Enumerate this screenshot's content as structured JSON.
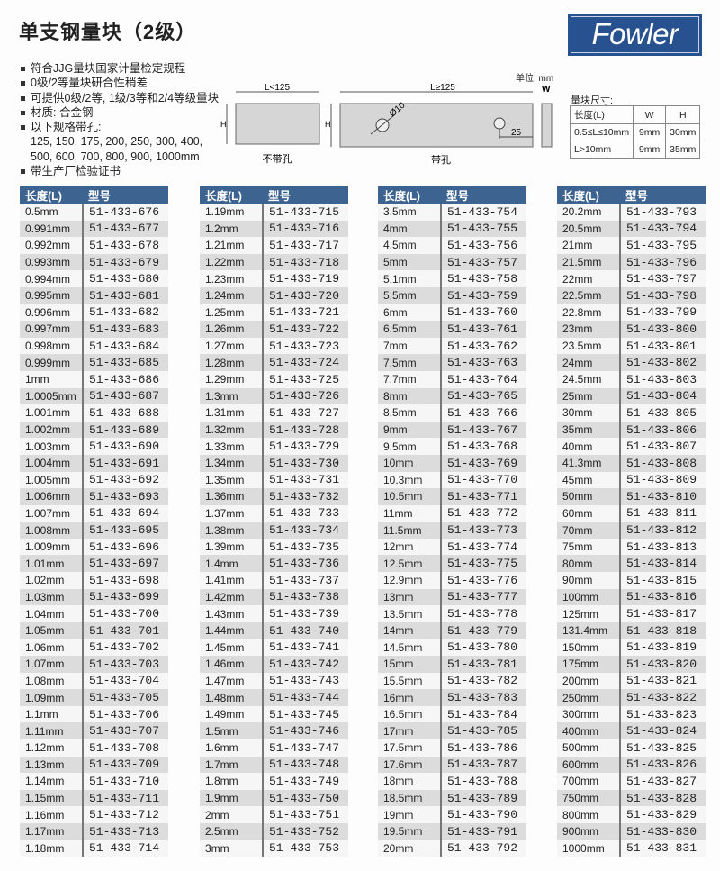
{
  "title": "单支钢量块（2级）",
  "logo": "Fowler",
  "bullets": [
    "符合JJG量块国家计量检定规程",
    "0级/2等量块研合性稍差",
    "可提供0级/2等, 1级/3等和2/4等级量块",
    "材质: 合金钢",
    "以下规格带孔:",
    "125, 150, 175, 200, 250, 300, 400,",
    "500, 600, 700, 800, 900, 1000mm",
    "带生产厂检验证书"
  ],
  "diagram": {
    "unit": "单位: mm",
    "left_len": "L<125",
    "right_len": "L≥125",
    "h": "H",
    "w": "W",
    "hole": "Ø10",
    "offset": "25",
    "left_caption": "不带孔",
    "right_caption": "带孔"
  },
  "sizes": {
    "title": "量块尺寸:",
    "header": [
      "长度(L)",
      "W",
      "H"
    ],
    "rows": [
      [
        "0.5≤L≤10mm",
        "9mm",
        "30mm"
      ],
      [
        "L>10mm",
        "9mm",
        "35mm"
      ]
    ]
  },
  "table_header": [
    "长度(L)",
    "型号"
  ],
  "tables": [
    [
      "0.5mm",
      "0.991mm",
      "0.992mm",
      "0.993mm",
      "0.994mm",
      "0.995mm",
      "0.996mm",
      "0.997mm",
      "0.998mm",
      "0.999mm",
      "1mm",
      "1.0005mm",
      "1.001mm",
      "1.002mm",
      "1.003mm",
      "1.004mm",
      "1.005mm",
      "1.006mm",
      "1.007mm",
      "1.008mm",
      "1.009mm",
      "1.01mm",
      "1.02mm",
      "1.03mm",
      "1.04mm",
      "1.05mm",
      "1.06mm",
      "1.07mm",
      "1.08mm",
      "1.09mm",
      "1.1mm",
      "1.11mm",
      "1.12mm",
      "1.13mm",
      "1.14mm",
      "1.15mm",
      "1.16mm",
      "1.17mm",
      "1.18mm"
    ],
    [
      "1.19mm",
      "1.2mm",
      "1.21mm",
      "1.22mm",
      "1.23mm",
      "1.24mm",
      "1.25mm",
      "1.26mm",
      "1.27mm",
      "1.28mm",
      "1.29mm",
      "1.3mm",
      "1.31mm",
      "1.32mm",
      "1.33mm",
      "1.34mm",
      "1.35mm",
      "1.36mm",
      "1.37mm",
      "1.38mm",
      "1.39mm",
      "1.4mm",
      "1.41mm",
      "1.42mm",
      "1.43mm",
      "1.44mm",
      "1.45mm",
      "1.46mm",
      "1.47mm",
      "1.48mm",
      "1.49mm",
      "1.5mm",
      "1.6mm",
      "1.7mm",
      "1.8mm",
      "1.9mm",
      "2mm",
      "2.5mm",
      "3mm"
    ],
    [
      "3.5mm",
      "4mm",
      "4.5mm",
      "5mm",
      "5.1mm",
      "5.5mm",
      "6mm",
      "6.5mm",
      "7mm",
      "7.5mm",
      "7.7mm",
      "8mm",
      "8.5mm",
      "9mm",
      "9.5mm",
      "10mm",
      "10.3mm",
      "10.5mm",
      "11mm",
      "11.5mm",
      "12mm",
      "12.5mm",
      "12.9mm",
      "13mm",
      "13.5mm",
      "14mm",
      "14.5mm",
      "15mm",
      "15.5mm",
      "16mm",
      "16.5mm",
      "17mm",
      "17.5mm",
      "17.6mm",
      "18mm",
      "18.5mm",
      "19mm",
      "19.5mm",
      "20mm"
    ],
    [
      "20.2mm",
      "20.5mm",
      "21mm",
      "21.5mm",
      "22mm",
      "22.5mm",
      "22.8mm",
      "23mm",
      "23.5mm",
      "24mm",
      "24.5mm",
      "25mm",
      "30mm",
      "35mm",
      "40mm",
      "41.3mm",
      "45mm",
      "50mm",
      "60mm",
      "70mm",
      "75mm",
      "80mm",
      "90mm",
      "100mm",
      "125mm",
      "131.4mm",
      "150mm",
      "175mm",
      "200mm",
      "250mm",
      "300mm",
      "400mm",
      "500mm",
      "600mm",
      "700mm",
      "750mm",
      "800mm",
      "900mm",
      "1000mm"
    ]
  ],
  "models": [
    [
      "51-433-676",
      "51-433-677",
      "51-433-678",
      "51-433-679",
      "51-433-680",
      "51-433-681",
      "51-433-682",
      "51-433-683",
      "51-433-684",
      "51-433-685",
      "51-433-686",
      "51-433-687",
      "51-433-688",
      "51-433-689",
      "51-433-690",
      "51-433-691",
      "51-433-692",
      "51-433-693",
      "51-433-694",
      "51-433-695",
      "51-433-696",
      "51-433-697",
      "51-433-698",
      "51-433-699",
      "51-433-700",
      "51-433-701",
      "51-433-702",
      "51-433-703",
      "51-433-704",
      "51-433-705",
      "51-433-706",
      "51-433-707",
      "51-433-708",
      "51-433-709",
      "51-433-710",
      "51-433-711",
      "51-433-712",
      "51-433-713",
      "51-433-714"
    ],
    [
      "51-433-715",
      "51-433-716",
      "51-433-717",
      "51-433-718",
      "51-433-719",
      "51-433-720",
      "51-433-721",
      "51-433-722",
      "51-433-723",
      "51-433-724",
      "51-433-725",
      "51-433-726",
      "51-433-727",
      "51-433-728",
      "51-433-729",
      "51-433-730",
      "51-433-731",
      "51-433-732",
      "51-433-733",
      "51-433-734",
      "51-433-735",
      "51-433-736",
      "51-433-737",
      "51-433-738",
      "51-433-739",
      "51-433-740",
      "51-433-741",
      "51-433-742",
      "51-433-743",
      "51-433-744",
      "51-433-745",
      "51-433-746",
      "51-433-747",
      "51-433-748",
      "51-433-749",
      "51-433-750",
      "51-433-751",
      "51-433-752",
      "51-433-753"
    ],
    [
      "51-433-754",
      "51-433-755",
      "51-433-756",
      "51-433-757",
      "51-433-758",
      "51-433-759",
      "51-433-760",
      "51-433-761",
      "51-433-762",
      "51-433-763",
      "51-433-764",
      "51-433-765",
      "51-433-766",
      "51-433-767",
      "51-433-768",
      "51-433-769",
      "51-433-770",
      "51-433-771",
      "51-433-772",
      "51-433-773",
      "51-433-774",
      "51-433-775",
      "51-433-776",
      "51-433-777",
      "51-433-778",
      "51-433-779",
      "51-433-780",
      "51-433-781",
      "51-433-782",
      "51-433-783",
      "51-433-784",
      "51-433-785",
      "51-433-786",
      "51-433-787",
      "51-433-788",
      "51-433-789",
      "51-433-790",
      "51-433-791",
      "51-433-792"
    ],
    [
      "51-433-793",
      "51-433-794",
      "51-433-795",
      "51-433-796",
      "51-433-797",
      "51-433-798",
      "51-433-799",
      "51-433-800",
      "51-433-801",
      "51-433-802",
      "51-433-803",
      "51-433-804",
      "51-433-805",
      "51-433-806",
      "51-433-807",
      "51-433-808",
      "51-433-809",
      "51-433-810",
      "51-433-811",
      "51-433-812",
      "51-433-813",
      "51-433-814",
      "51-433-815",
      "51-433-816",
      "51-433-817",
      "51-433-818",
      "51-433-819",
      "51-433-820",
      "51-433-821",
      "51-433-822",
      "51-433-823",
      "51-433-824",
      "51-433-825",
      "51-433-826",
      "51-433-827",
      "51-433-828",
      "51-433-829",
      "51-433-830",
      "51-433-831"
    ]
  ],
  "colors": {
    "header": "#3d6491",
    "logo": "#27528f"
  }
}
